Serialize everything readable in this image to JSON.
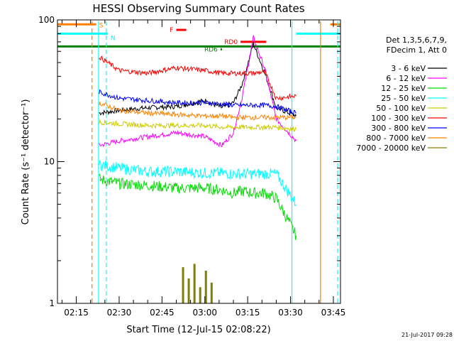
{
  "chart_data": {
    "type": "line",
    "title": "HESSI Observing Summary Count Rates",
    "xlabel": "Start Time (12-Jul-15 02:08:22)",
    "ylabel": "Count Rate (s⁻¹ detector⁻¹)",
    "yscale": "log",
    "ylim": [
      1,
      100
    ],
    "xlim_minutes": [
      128.4,
      227.5
    ],
    "x_ticks": [
      "02:15",
      "02:30",
      "02:45",
      "03:00",
      "03:15",
      "03:30",
      "03:45"
    ],
    "y_ticks": [
      "1",
      "10",
      "100"
    ],
    "legend_header": [
      "Det 1,3,5,6,7,9,",
      "FDecim 1, Att 0"
    ],
    "legend_placement": "right",
    "series": [
      {
        "name": "3 - 6 keV",
        "color": "#000000",
        "x": [
          143,
          150,
          160,
          170,
          180,
          186,
          190,
          193,
          197,
          201,
          205,
          212
        ],
        "values": [
          22,
          23,
          24,
          24.5,
          27,
          24,
          26,
          35,
          68,
          42,
          24,
          21
        ]
      },
      {
        "name": "6 - 12 keV",
        "color": "#ff00ff",
        "x": [
          143,
          150,
          160,
          170,
          180,
          186,
          190,
          193,
          197,
          201,
          205,
          212
        ],
        "values": [
          13,
          14,
          15,
          16,
          15,
          13,
          16,
          28,
          75,
          45,
          20,
          14
        ]
      },
      {
        "name": "12 - 25 keV",
        "color": "#00dd00",
        "x": [
          143,
          150,
          160,
          170,
          180,
          186,
          190,
          193,
          197,
          201,
          205,
          212
        ],
        "values": [
          7.5,
          7,
          6.8,
          6.5,
          6.5,
          6.3,
          6,
          6.2,
          6,
          6,
          5.5,
          3
        ]
      },
      {
        "name": "25 - 50 keV",
        "color": "#00ffff",
        "x": [
          143,
          150,
          160,
          170,
          180,
          186,
          190,
          193,
          197,
          201,
          205,
          212
        ],
        "values": [
          9.5,
          9,
          8.5,
          8.5,
          8.3,
          8.3,
          8.2,
          8.2,
          8.2,
          8.2,
          8.2,
          5
        ]
      },
      {
        "name": "50 - 100 keV",
        "color": "#cccc00",
        "x": [
          143,
          150,
          160,
          170,
          180,
          186,
          190,
          193,
          197,
          201,
          205,
          212
        ],
        "values": [
          19,
          18.5,
          18,
          18,
          18,
          17.5,
          17.5,
          17.5,
          17.5,
          17.5,
          17.5,
          17
        ]
      },
      {
        "name": "100 - 300 keV",
        "color": "#ff0000",
        "x": [
          143,
          150,
          160,
          170,
          180,
          186,
          190,
          193,
          197,
          201,
          205,
          212
        ],
        "values": [
          55,
          44,
          42,
          46,
          44,
          42,
          42,
          42,
          42,
          43,
          28,
          29
        ]
      },
      {
        "name": "300 - 800 keV",
        "color": "#0000ff",
        "x": [
          143,
          150,
          160,
          170,
          180,
          186,
          190,
          193,
          197,
          201,
          205,
          212
        ],
        "values": [
          31,
          28,
          27,
          26,
          26,
          25.5,
          25,
          25,
          25,
          25,
          24.5,
          22
        ]
      },
      {
        "name": "800 - 7000 keV",
        "color": "#ff8000",
        "x": [
          143,
          150,
          160,
          170,
          180,
          186,
          190,
          193,
          197,
          201,
          205,
          212
        ],
        "values": [
          26,
          23,
          22,
          21.5,
          21,
          21,
          20.5,
          20.5,
          20.5,
          20.5,
          20.5,
          20.5
        ]
      },
      {
        "name": "7000 - 20000 keV",
        "color": "#808000",
        "x": [
          172,
          174,
          176,
          178,
          180,
          182
        ],
        "values": [
          1.8,
          1.5,
          1.9,
          1.3,
          1.7,
          1.4
        ]
      }
    ],
    "flag_bars": [
      {
        "label": "S",
        "color": "#ff8000",
        "y": 93,
        "x": [
          128.4,
          142
        ],
        "x2": [
          224,
          227.5
        ]
      },
      {
        "label": "N",
        "color": "#00ffff",
        "x": [
          128.4,
          146
        ],
        "x2": [
          212,
          227.5
        ],
        "y": 80
      },
      {
        "label": "F",
        "color": "#ff0000",
        "x": [
          170,
          173.5
        ],
        "y": 85
      },
      {
        "label": "RD6",
        "color": "#008000",
        "x": [
          185.5,
          186
        ],
        "y": 62
      },
      {
        "label": "RD0",
        "color": "#ff0000",
        "x": [
          192.5,
          201.5
        ],
        "y": 70
      },
      {
        "label": "",
        "color": "#008000",
        "x": [
          128.4,
          227.5
        ],
        "y": 65
      }
    ],
    "vertical_lines": [
      {
        "x": 140.5,
        "color": "#ff8000",
        "style": "dashed"
      },
      {
        "x": 142.8,
        "color": "#00ffff",
        "style": "solid"
      },
      {
        "x": 145.5,
        "color": "#00ffff",
        "style": "dashed"
      },
      {
        "x": 210.5,
        "color": "#00ffff",
        "style": "solid"
      },
      {
        "x": 220.5,
        "color": "#ff8000",
        "style": "solid"
      },
      {
        "x": 226.5,
        "color": "#00ffff",
        "style": "dashed"
      }
    ],
    "timestamp": "21-Jul-2017 09:28"
  }
}
